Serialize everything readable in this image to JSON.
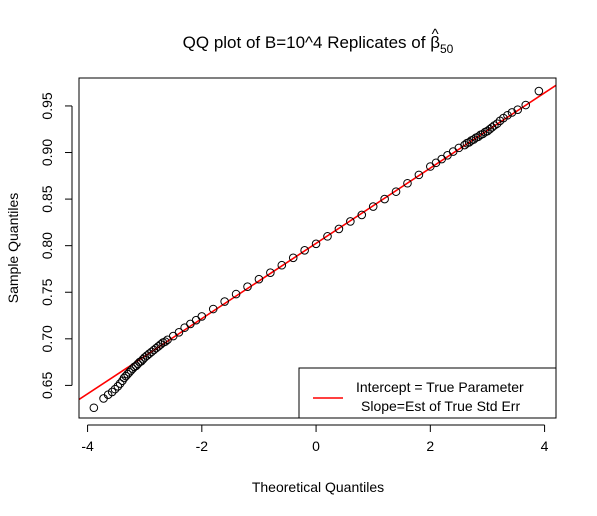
{
  "chart_data": {
    "type": "scatter",
    "title_prefix": "QQ plot of B=10^4 Replicates of ",
    "title_symbol": "β",
    "title_hat": "^",
    "title_subscript": "50",
    "xlabel": "Theoretical Quantiles",
    "ylabel": "Sample Quantiles",
    "xlim": [
      -4.15,
      4.2
    ],
    "ylim": [
      0.615,
      0.98
    ],
    "xticks": [
      -4,
      -2,
      0,
      2,
      4
    ],
    "xtick_labels": [
      "-4",
      "-2",
      "0",
      "2",
      "4"
    ],
    "yticks": [
      0.65,
      0.7,
      0.75,
      0.8,
      0.85,
      0.9,
      0.95
    ],
    "ytick_labels": [
      "0.65",
      "0.70",
      "0.75",
      "0.80",
      "0.85",
      "0.90",
      "0.95"
    ],
    "grid": false,
    "legend_position": "bottom-right",
    "legend": [
      {
        "label": "Intercept = True Parameter",
        "color": "#ff0000"
      },
      {
        "label": "Slope=Est of True Std Err",
        "color": null
      }
    ],
    "reference_line": {
      "intercept": 0.8025,
      "slope": 0.0404,
      "color": "#ff0000"
    },
    "series": [
      {
        "marker": "open-circle",
        "color": "#000000",
        "x": [
          -3.89,
          -3.72,
          -3.64,
          -3.57,
          -3.52,
          -3.47,
          -3.43,
          -3.39,
          -3.36,
          -3.33,
          -3.3,
          -3.27,
          -3.24,
          -3.21,
          -3.18,
          -3.15,
          -3.12,
          -3.09,
          -3.06,
          -3.03,
          -3.0,
          -2.96,
          -2.92,
          -2.88,
          -2.84,
          -2.8,
          -2.76,
          -2.72,
          -2.68,
          -2.64,
          -2.6,
          -2.5,
          -2.4,
          -2.3,
          -2.2,
          -2.1,
          -2.0,
          -1.8,
          -1.6,
          -1.4,
          -1.2,
          -1.0,
          -0.8,
          -0.6,
          -0.4,
          -0.2,
          0.0,
          0.2,
          0.4,
          0.6,
          0.8,
          1.0,
          1.2,
          1.4,
          1.6,
          1.8,
          2.0,
          2.1,
          2.2,
          2.3,
          2.4,
          2.5,
          2.6,
          2.64,
          2.68,
          2.72,
          2.76,
          2.8,
          2.84,
          2.88,
          2.92,
          2.96,
          3.0,
          3.04,
          3.08,
          3.12,
          3.17,
          3.22,
          3.28,
          3.35,
          3.43,
          3.53,
          3.67,
          3.9
        ],
        "y": [
          0.626,
          0.636,
          0.64,
          0.643,
          0.646,
          0.649,
          0.652,
          0.655,
          0.658,
          0.66,
          0.662,
          0.664,
          0.666,
          0.668,
          0.67,
          0.671,
          0.673,
          0.675,
          0.676,
          0.678,
          0.68,
          0.682,
          0.684,
          0.686,
          0.688,
          0.69,
          0.692,
          0.694,
          0.696,
          0.697,
          0.699,
          0.703,
          0.707,
          0.712,
          0.716,
          0.72,
          0.724,
          0.732,
          0.74,
          0.748,
          0.756,
          0.764,
          0.771,
          0.779,
          0.787,
          0.795,
          0.802,
          0.81,
          0.818,
          0.826,
          0.833,
          0.842,
          0.85,
          0.858,
          0.867,
          0.876,
          0.885,
          0.889,
          0.893,
          0.897,
          0.901,
          0.905,
          0.908,
          0.91,
          0.911,
          0.913,
          0.914,
          0.916,
          0.917,
          0.919,
          0.92,
          0.922,
          0.923,
          0.925,
          0.927,
          0.929,
          0.931,
          0.934,
          0.937,
          0.94,
          0.943,
          0.946,
          0.951,
          0.966
        ]
      }
    ]
  }
}
